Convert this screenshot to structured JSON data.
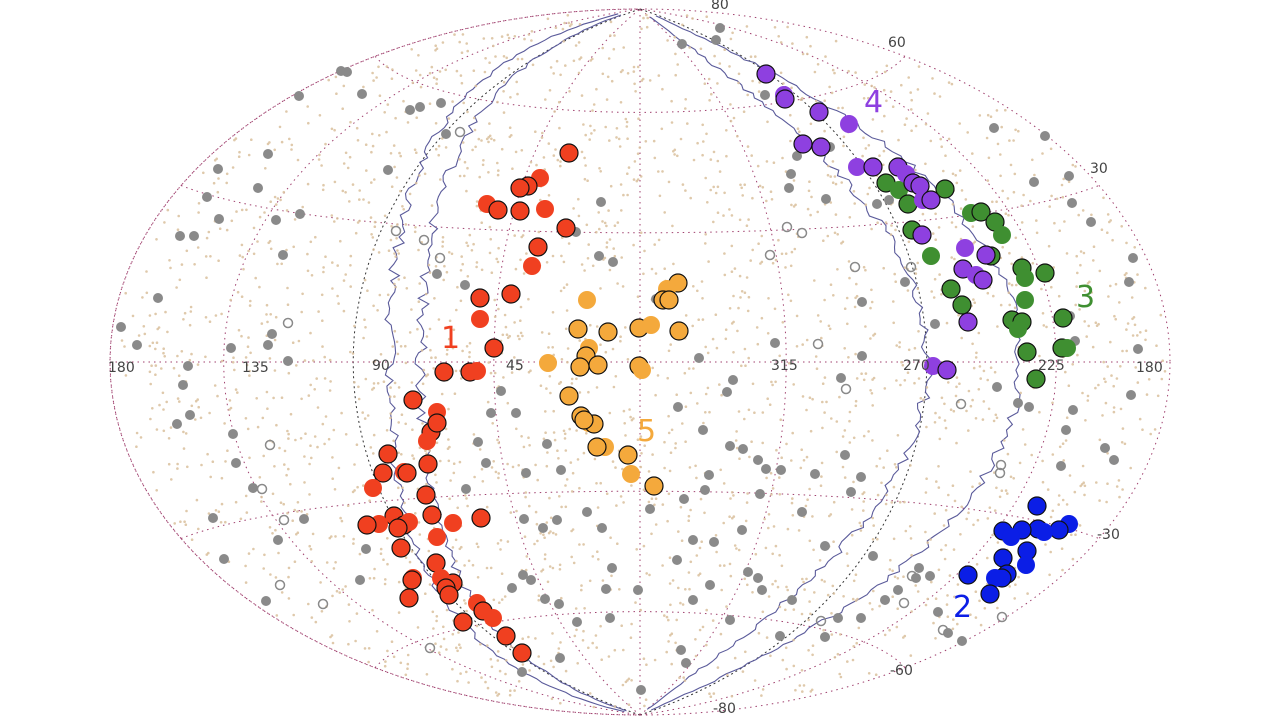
{
  "chart_data": {
    "type": "scatter",
    "projection": "aitoff-hammer",
    "title": "",
    "xlabel": "",
    "ylabel": "",
    "lon_tick_labels": [
      "180",
      "135",
      "90",
      "45",
      "315",
      "270",
      "225",
      "180"
    ],
    "lat_tick_labels": [
      "80",
      "60",
      "30",
      "-30",
      "-60",
      "-80"
    ],
    "grid": true,
    "series": [
      {
        "name": "1",
        "color": "#f04020",
        "points": [
          [
            569,
            153
          ],
          [
            540,
            178
          ],
          [
            528,
            186
          ],
          [
            520,
            188
          ],
          [
            487,
            204
          ],
          [
            498,
            210
          ],
          [
            520,
            211
          ],
          [
            545,
            209
          ],
          [
            566,
            228
          ],
          [
            538,
            247
          ],
          [
            532,
            266
          ],
          [
            511,
            294
          ],
          [
            480,
            298
          ],
          [
            480,
            319
          ],
          [
            494,
            348
          ],
          [
            470,
            372
          ],
          [
            477,
            371
          ],
          [
            444,
            372
          ],
          [
            413,
            400
          ],
          [
            437,
            412
          ],
          [
            431,
            432
          ],
          [
            437,
            423
          ],
          [
            427,
            441
          ],
          [
            388,
            454
          ],
          [
            428,
            464
          ],
          [
            404,
            472
          ],
          [
            407,
            473
          ],
          [
            383,
            473
          ],
          [
            373,
            488
          ],
          [
            426,
            495
          ],
          [
            394,
            516
          ],
          [
            379,
            524
          ],
          [
            367,
            525
          ],
          [
            404,
            525
          ],
          [
            409,
            522
          ],
          [
            398,
            528
          ],
          [
            432,
            515
          ],
          [
            453,
            523
          ],
          [
            481,
            518
          ],
          [
            401,
            548
          ],
          [
            437,
            537
          ],
          [
            436,
            563
          ],
          [
            453,
            583
          ],
          [
            441,
            578
          ],
          [
            446,
            588
          ],
          [
            449,
            595
          ],
          [
            413,
            578
          ],
          [
            412,
            580
          ],
          [
            409,
            598
          ],
          [
            477,
            603
          ],
          [
            483,
            611
          ],
          [
            463,
            622
          ],
          [
            493,
            618
          ],
          [
            506,
            636
          ],
          [
            522,
            653
          ]
        ]
      },
      {
        "name": "2",
        "color": "#0b1ee6",
        "points": [
          [
            1037,
            506
          ],
          [
            1069,
            524
          ],
          [
            1059,
            530
          ],
          [
            1038,
            529
          ],
          [
            1044,
            532
          ],
          [
            1022,
            530
          ],
          [
            1003,
            531
          ],
          [
            1011,
            537
          ],
          [
            1003,
            558
          ],
          [
            1027,
            551
          ],
          [
            1026,
            565
          ],
          [
            1007,
            574
          ],
          [
            1002,
            578
          ],
          [
            995,
            578
          ],
          [
            968,
            575
          ],
          [
            990,
            594
          ]
        ]
      },
      {
        "name": "3",
        "color": "#3f8f31",
        "points": [
          [
            886,
            183
          ],
          [
            899,
            190
          ],
          [
            945,
            189
          ],
          [
            908,
            204
          ],
          [
            971,
            213
          ],
          [
            981,
            212
          ],
          [
            995,
            222
          ],
          [
            1002,
            235
          ],
          [
            912,
            230
          ],
          [
            991,
            256
          ],
          [
            931,
            256
          ],
          [
            1022,
            268
          ],
          [
            1045,
            273
          ],
          [
            1025,
            278
          ],
          [
            951,
            289
          ],
          [
            962,
            305
          ],
          [
            1025,
            300
          ],
          [
            1012,
            320
          ],
          [
            1022,
            322
          ],
          [
            1018,
            329
          ],
          [
            1063,
            318
          ],
          [
            1062,
            348
          ],
          [
            1067,
            348
          ],
          [
            1027,
            352
          ],
          [
            1036,
            379
          ]
        ]
      },
      {
        "name": "4",
        "color": "#8e40e0",
        "points": [
          [
            766,
            74
          ],
          [
            784,
            95
          ],
          [
            785,
            99
          ],
          [
            819,
            112
          ],
          [
            849,
            124
          ],
          [
            803,
            144
          ],
          [
            821,
            147
          ],
          [
            857,
            167
          ],
          [
            873,
            167
          ],
          [
            898,
            167
          ],
          [
            906,
            174
          ],
          [
            913,
            183
          ],
          [
            920,
            186
          ],
          [
            923,
            200
          ],
          [
            931,
            200
          ],
          [
            922,
            235
          ],
          [
            965,
            248
          ],
          [
            986,
            255
          ],
          [
            963,
            269
          ],
          [
            976,
            275
          ],
          [
            983,
            280
          ],
          [
            968,
            322
          ],
          [
            933,
            366
          ],
          [
            947,
            370
          ]
        ]
      },
      {
        "name": "5",
        "color": "#f4a93c",
        "points": [
          [
            678,
            283
          ],
          [
            667,
            289
          ],
          [
            663,
            300
          ],
          [
            669,
            300
          ],
          [
            587,
            300
          ],
          [
            608,
            332
          ],
          [
            639,
            328
          ],
          [
            651,
            325
          ],
          [
            679,
            331
          ],
          [
            578,
            329
          ],
          [
            589,
            348
          ],
          [
            586,
            356
          ],
          [
            598,
            365
          ],
          [
            548,
            363
          ],
          [
            580,
            367
          ],
          [
            639,
            366
          ],
          [
            642,
            370
          ],
          [
            569,
            396
          ],
          [
            581,
            416
          ],
          [
            589,
            423
          ],
          [
            594,
            424
          ],
          [
            584,
            420
          ],
          [
            605,
            447
          ],
          [
            597,
            447
          ],
          [
            628,
            455
          ],
          [
            631,
            474
          ],
          [
            654,
            486
          ]
        ]
      }
    ],
    "background_sources": {
      "name": "",
      "color": "#8a8a8a",
      "points": [
        [
          720,
          28
        ],
        [
          682,
          44
        ],
        [
          716,
          40
        ],
        [
          341,
          71
        ],
        [
          347,
          72
        ],
        [
          299,
          96
        ],
        [
          362,
          94
        ],
        [
          410,
          110
        ],
        [
          420,
          107
        ],
        [
          441,
          103
        ],
        [
          765,
          95
        ],
        [
          994,
          128
        ],
        [
          1045,
          136
        ],
        [
          218,
          169
        ],
        [
          258,
          188
        ],
        [
          388,
          170
        ],
        [
          446,
          134
        ],
        [
          268,
          154
        ],
        [
          830,
          147
        ],
        [
          797,
          156
        ],
        [
          789,
          188
        ],
        [
          791,
          174
        ],
        [
          826,
          199
        ],
        [
          889,
          200
        ],
        [
          877,
          204
        ],
        [
          180,
          236
        ],
        [
          194,
          236
        ],
        [
          219,
          219
        ],
        [
          207,
          197
        ],
        [
          300,
          214
        ],
        [
          276,
          220
        ],
        [
          283,
          255
        ],
        [
          601,
          202
        ],
        [
          437,
          274
        ],
        [
          465,
          285
        ],
        [
          613,
          262
        ],
        [
          599,
          256
        ],
        [
          576,
          232
        ],
        [
          656,
          299
        ],
        [
          272,
          334
        ],
        [
          268,
          345
        ],
        [
          288,
          361
        ],
        [
          231,
          348
        ],
        [
          188,
          366
        ],
        [
          183,
          385
        ],
        [
          158,
          298
        ],
        [
          137,
          345
        ],
        [
          121,
          327
        ],
        [
          1034,
          182
        ],
        [
          1069,
          176
        ],
        [
          1072,
          203
        ],
        [
          1091,
          222
        ],
        [
          1133,
          258
        ],
        [
          1129,
          282
        ],
        [
          1070,
          316
        ],
        [
          1075,
          341
        ],
        [
          1138,
          349
        ],
        [
          1131,
          395
        ],
        [
          1105,
          448
        ],
        [
          1114,
          460
        ],
        [
          1073,
          410
        ],
        [
          1066,
          430
        ],
        [
          1061,
          466
        ],
        [
          997,
          387
        ],
        [
          1018,
          403
        ],
        [
          1029,
          407
        ],
        [
          935,
          324
        ],
        [
          905,
          282
        ],
        [
          862,
          302
        ],
        [
          862,
          356
        ],
        [
          841,
          378
        ],
        [
          775,
          343
        ],
        [
          699,
          358
        ],
        [
          733,
          380
        ],
        [
          727,
          392
        ],
        [
          678,
          407
        ],
        [
          703,
          430
        ],
        [
          730,
          446
        ],
        [
          743,
          449
        ],
        [
          758,
          460
        ],
        [
          766,
          469
        ],
        [
          781,
          470
        ],
        [
          760,
          494
        ],
        [
          845,
          455
        ],
        [
          861,
          477
        ],
        [
          851,
          492
        ],
        [
          815,
          474
        ],
        [
          709,
          475
        ],
        [
          705,
          490
        ],
        [
          684,
          499
        ],
        [
          650,
          509
        ],
        [
          516,
          413
        ],
        [
          491,
          413
        ],
        [
          501,
          391
        ],
        [
          547,
          444
        ],
        [
          561,
          470
        ],
        [
          526,
          473
        ],
        [
          486,
          463
        ],
        [
          478,
          442
        ],
        [
          466,
          489
        ],
        [
          587,
          512
        ],
        [
          602,
          528
        ],
        [
          524,
          519
        ],
        [
          543,
          528
        ],
        [
          557,
          520
        ],
        [
          523,
          575
        ],
        [
          531,
          580
        ],
        [
          545,
          599
        ],
        [
          559,
          604
        ],
        [
          512,
          588
        ],
        [
          612,
          568
        ],
        [
          606,
          589
        ],
        [
          638,
          590
        ],
        [
          677,
          560
        ],
        [
          693,
          540
        ],
        [
          714,
          542
        ],
        [
          742,
          530
        ],
        [
          710,
          585
        ],
        [
          748,
          572
        ],
        [
          758,
          578
        ],
        [
          762,
          590
        ],
        [
          792,
          600
        ],
        [
          825,
          637
        ],
        [
          838,
          618
        ],
        [
          885,
          600
        ],
        [
          898,
          590
        ],
        [
          861,
          618
        ],
        [
          825,
          546
        ],
        [
          802,
          512
        ],
        [
          873,
          556
        ],
        [
          919,
          568
        ],
        [
          916,
          578
        ],
        [
          930,
          576
        ],
        [
          938,
          612
        ],
        [
          948,
          633
        ],
        [
          962,
          641
        ],
        [
          681,
          650
        ],
        [
          686,
          663
        ],
        [
          693,
          600
        ],
        [
          730,
          620
        ],
        [
          780,
          636
        ],
        [
          641,
          690
        ],
        [
          577,
          622
        ],
        [
          560,
          658
        ],
        [
          522,
          672
        ],
        [
          610,
          618
        ],
        [
          253,
          488
        ],
        [
          236,
          463
        ],
        [
          233,
          434
        ],
        [
          190,
          415
        ],
        [
          177,
          424
        ],
        [
          213,
          518
        ],
        [
          224,
          559
        ],
        [
          266,
          601
        ],
        [
          278,
          540
        ],
        [
          304,
          519
        ],
        [
          366,
          549
        ],
        [
          360,
          580
        ]
      ]
    },
    "faint_sources": {
      "name": "",
      "color": "#d9c09c"
    },
    "group_labels": [
      {
        "text": "1",
        "color": "#f04020"
      },
      {
        "text": "2",
        "color": "#0b1ee6"
      },
      {
        "text": "3",
        "color": "#3f8f31"
      },
      {
        "text": "4",
        "color": "#8e40e0"
      },
      {
        "text": "5",
        "color": "#f4a93c"
      }
    ]
  }
}
